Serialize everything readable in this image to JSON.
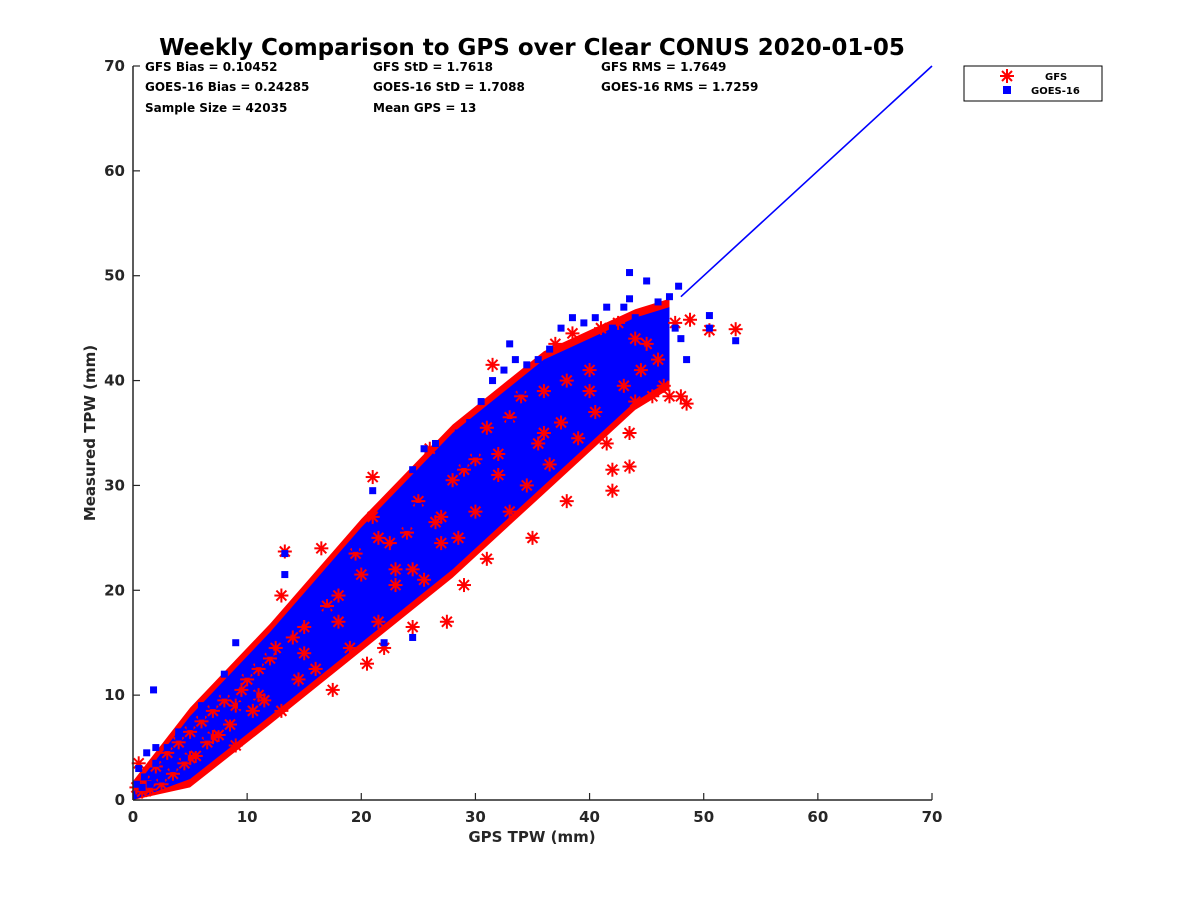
{
  "chart_data": {
    "type": "scatter",
    "title": "Weekly Comparison to GPS over Clear CONUS 2020-01-05",
    "xlabel": "GPS TPW (mm)",
    "ylabel": "Measured TPW (mm)",
    "xlim": [
      0,
      70
    ],
    "ylim": [
      0,
      70
    ],
    "xticks": [
      "0",
      "10",
      "20",
      "30",
      "40",
      "50",
      "60",
      "70"
    ],
    "yticks": [
      "0",
      "10",
      "20",
      "30",
      "40",
      "50",
      "60",
      "70"
    ],
    "grid": false,
    "legend_position": "outside top-right",
    "stats": [
      [
        "GFS Bias = 0.10452",
        "GFS StD = 1.7618",
        "GFS RMS = 1.7649"
      ],
      [
        "GOES-16 Bias = 0.24285",
        "GOES-16 StD = 1.7088",
        "GOES-16 RMS = 1.7259"
      ],
      [
        "Sample Size = 42035",
        "Mean GPS = 13"
      ]
    ],
    "one_to_one_line": {
      "x": [
        48,
        70
      ],
      "y": [
        48,
        70
      ],
      "color": "#0000ff"
    },
    "series": [
      {
        "name": "GFS",
        "marker": "asterisk",
        "color": "#ff0000",
        "points": [
          [
            0.3,
            1.2
          ],
          [
            0.5,
            3.5
          ],
          [
            0.8,
            0.8
          ],
          [
            1,
            1.8
          ],
          [
            1.5,
            1.0
          ],
          [
            2,
            3.2
          ],
          [
            2.5,
            1.5
          ],
          [
            3,
            4.5
          ],
          [
            3.5,
            2.5
          ],
          [
            4,
            5.5
          ],
          [
            4.5,
            3.5
          ],
          [
            5,
            6.5
          ],
          [
            5.5,
            4.2
          ],
          [
            6,
            7.5
          ],
          [
            6.5,
            5.5
          ],
          [
            7,
            8.5
          ],
          [
            7.5,
            6.2
          ],
          [
            8,
            9.5
          ],
          [
            8.5,
            7.2
          ],
          [
            9,
            5.2
          ],
          [
            9.5,
            10.5
          ],
          [
            10,
            11.5
          ],
          [
            10.5,
            8.5
          ],
          [
            11,
            12.5
          ],
          [
            11.5,
            9.5
          ],
          [
            12,
            13.5
          ],
          [
            13,
            8.5
          ],
          [
            13.3,
            23.7
          ],
          [
            13,
            19.5
          ],
          [
            14,
            15.5
          ],
          [
            14.5,
            11.5
          ],
          [
            15,
            16.5
          ],
          [
            16,
            12.5
          ],
          [
            16.5,
            24
          ],
          [
            17,
            18.5
          ],
          [
            17.5,
            10.5
          ],
          [
            18,
            19.5
          ],
          [
            19,
            14.5
          ],
          [
            19.5,
            23.5
          ],
          [
            20,
            21.5
          ],
          [
            20.5,
            13
          ],
          [
            21,
            27
          ],
          [
            21,
            30.8
          ],
          [
            21.5,
            25
          ],
          [
            21.5,
            17
          ],
          [
            22,
            14.5
          ],
          [
            22.5,
            24.5
          ],
          [
            23,
            20.5
          ],
          [
            24,
            25.5
          ],
          [
            24.5,
            16.5
          ],
          [
            24.5,
            22
          ],
          [
            25,
            28.5
          ],
          [
            25.5,
            21
          ],
          [
            26,
            33.5
          ],
          [
            26.5,
            26.5
          ],
          [
            27,
            24.5
          ],
          [
            27.5,
            17
          ],
          [
            28,
            30.5
          ],
          [
            28.5,
            25
          ],
          [
            29,
            31.5
          ],
          [
            29,
            20.5
          ],
          [
            30,
            32.5
          ],
          [
            30,
            27.5
          ],
          [
            31,
            35.5
          ],
          [
            31.5,
            41.5
          ],
          [
            31,
            23
          ],
          [
            32,
            33
          ],
          [
            33,
            36.5
          ],
          [
            33,
            27.5
          ],
          [
            34,
            38.5
          ],
          [
            34.5,
            30
          ],
          [
            35,
            25
          ],
          [
            35.5,
            34
          ],
          [
            36,
            39
          ],
          [
            36.5,
            32
          ],
          [
            37,
            43.5
          ],
          [
            37.5,
            36
          ],
          [
            38,
            40
          ],
          [
            38,
            28.5
          ],
          [
            38.5,
            44.5
          ],
          [
            39,
            34.5
          ],
          [
            40,
            41
          ],
          [
            40.5,
            37
          ],
          [
            41,
            45
          ],
          [
            41.5,
            34
          ],
          [
            42,
            29.5
          ],
          [
            42,
            31.5
          ],
          [
            42.5,
            45.5
          ],
          [
            43,
            39.5
          ],
          [
            43.5,
            35
          ],
          [
            43.5,
            31.8
          ],
          [
            44,
            38
          ],
          [
            44.5,
            41
          ],
          [
            45,
            43.5
          ],
          [
            45.5,
            38.5
          ],
          [
            46,
            42
          ],
          [
            46.5,
            39.5
          ],
          [
            47,
            38.5
          ],
          [
            47.5,
            45.5
          ],
          [
            48,
            38.5
          ],
          [
            48.5,
            37.8
          ],
          [
            48.8,
            45.8
          ],
          [
            50.5,
            44.8
          ],
          [
            52.8,
            44.9
          ],
          [
            12.5,
            14.5
          ],
          [
            5,
            4
          ],
          [
            7,
            6
          ],
          [
            9,
            9
          ],
          [
            11,
            10
          ],
          [
            15,
            14
          ],
          [
            18,
            17
          ],
          [
            23,
            22
          ],
          [
            27,
            27
          ],
          [
            32,
            31
          ],
          [
            36,
            35
          ],
          [
            40,
            39
          ],
          [
            44,
            44
          ]
        ]
      },
      {
        "name": "GOES-16",
        "marker": "square",
        "color": "#0000ff",
        "points": [
          [
            0.3,
            1.5
          ],
          [
            0.5,
            3
          ],
          [
            0.8,
            1.2
          ],
          [
            1,
            2.2
          ],
          [
            1.2,
            4.5
          ],
          [
            1.5,
            1.5
          ],
          [
            2,
            3.5
          ],
          [
            2.5,
            2
          ],
          [
            3,
            5
          ],
          [
            3.5,
            3
          ],
          [
            4,
            6
          ],
          [
            4.5,
            4
          ],
          [
            5,
            7
          ],
          [
            5.5,
            5
          ],
          [
            6,
            8
          ],
          [
            6.5,
            6
          ],
          [
            7,
            9
          ],
          [
            7.5,
            7
          ],
          [
            8,
            10
          ],
          [
            8.5,
            8
          ],
          [
            9,
            11
          ],
          [
            9.5,
            9
          ],
          [
            10,
            12
          ],
          [
            10.5,
            10
          ],
          [
            11,
            13
          ],
          [
            11.5,
            11
          ],
          [
            12,
            14
          ],
          [
            12.5,
            12
          ],
          [
            13.3,
            23.5
          ],
          [
            13.3,
            21.5
          ],
          [
            13.5,
            16
          ],
          [
            14,
            13
          ],
          [
            14.5,
            17
          ],
          [
            15,
            15
          ],
          [
            15.5,
            19
          ],
          [
            16,
            14
          ],
          [
            16.5,
            20
          ],
          [
            17,
            18
          ],
          [
            17.5,
            21
          ],
          [
            18,
            16
          ],
          [
            18.5,
            22
          ],
          [
            19,
            20
          ],
          [
            19.5,
            24
          ],
          [
            20,
            18
          ],
          [
            20.5,
            25
          ],
          [
            21,
            21
          ],
          [
            21,
            29.5
          ],
          [
            21.5,
            26
          ],
          [
            22,
            23
          ],
          [
            22,
            15
          ],
          [
            22.5,
            27
          ],
          [
            23,
            24
          ],
          [
            23.5,
            29
          ],
          [
            24,
            26
          ],
          [
            24.5,
            15.5
          ],
          [
            24.5,
            31.5
          ],
          [
            25,
            28
          ],
          [
            25.5,
            33.5
          ],
          [
            26,
            29
          ],
          [
            26.5,
            34
          ],
          [
            27,
            31
          ],
          [
            27.5,
            33
          ],
          [
            28,
            29
          ],
          [
            28.5,
            35
          ],
          [
            29,
            32
          ],
          [
            29.5,
            36
          ],
          [
            30,
            33
          ],
          [
            30.5,
            38
          ],
          [
            31,
            34
          ],
          [
            31.5,
            40
          ],
          [
            32,
            37
          ],
          [
            32.5,
            41
          ],
          [
            33,
            36
          ],
          [
            33,
            43.5
          ],
          [
            33.5,
            42
          ],
          [
            34,
            39
          ],
          [
            34.5,
            41.5
          ],
          [
            35,
            38
          ],
          [
            35.5,
            42
          ],
          [
            36,
            40
          ],
          [
            36.5,
            43
          ],
          [
            37,
            38
          ],
          [
            37.5,
            45
          ],
          [
            38,
            41
          ],
          [
            38.5,
            46
          ],
          [
            39,
            42
          ],
          [
            39.5,
            45.5
          ],
          [
            40,
            43
          ],
          [
            40.5,
            46
          ],
          [
            41,
            44
          ],
          [
            41.5,
            47
          ],
          [
            42,
            45
          ],
          [
            42.5,
            44
          ],
          [
            43,
            47
          ],
          [
            43.5,
            50.3
          ],
          [
            43.5,
            47.8
          ],
          [
            44,
            46
          ],
          [
            44.5,
            43
          ],
          [
            45,
            49.5
          ],
          [
            45.5,
            46
          ],
          [
            46,
            47.5
          ],
          [
            46.5,
            44
          ],
          [
            47,
            48
          ],
          [
            47.5,
            45
          ],
          [
            47.8,
            49
          ],
          [
            48,
            44
          ],
          [
            48.5,
            42
          ],
          [
            50.5,
            46.2
          ],
          [
            52.8,
            43.8
          ],
          [
            50.5,
            45
          ],
          [
            11,
            13.5
          ],
          [
            6,
            9
          ],
          [
            4,
            6.5
          ],
          [
            2,
            5
          ],
          [
            8,
            12
          ],
          [
            9,
            15
          ],
          [
            1.8,
            10.5
          ]
        ]
      }
    ]
  }
}
